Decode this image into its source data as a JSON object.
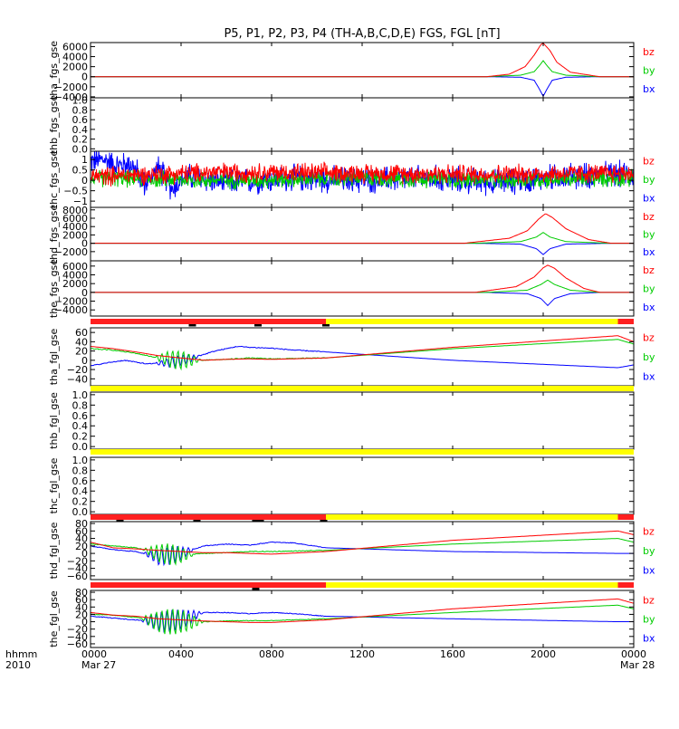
{
  "title": "P5, P1, P2, P3, P4 (TH-A,B,C,D,E) FGS, FGL [nT]",
  "colors": {
    "bx": "#0000ff",
    "by": "#00cc00",
    "bz": "#ff0000",
    "bar_red": "#ff2020",
    "bar_yellow": "#ffff00",
    "bar_black": "#000000"
  },
  "time_axis": {
    "label_line1": "hhmm",
    "label_line2": "2010",
    "range_hours": [
      0,
      24
    ],
    "ticks": [
      {
        "h": 0,
        "label": "0000",
        "date": "Mar 27"
      },
      {
        "h": 4,
        "label": "0400",
        "date": ""
      },
      {
        "h": 8,
        "label": "0800",
        "date": ""
      },
      {
        "h": 12,
        "label": "1200",
        "date": ""
      },
      {
        "h": 16,
        "label": "1600",
        "date": ""
      },
      {
        "h": 20,
        "label": "2000",
        "date": ""
      },
      {
        "h": 24,
        "label": "0000",
        "date": "Mar 28"
      }
    ]
  },
  "chart_data": [
    {
      "type": "line",
      "ylabel": "tha_fgs_gse",
      "ylim": [
        -4200,
        6800
      ],
      "yticks": [
        6000,
        4000,
        2000,
        0,
        -2000,
        -4000
      ],
      "ytick_labels": [
        "6000",
        "4000",
        "2000",
        "0",
        "−2000",
        "−4000"
      ],
      "legend": [
        "bz",
        "by",
        "bx"
      ],
      "series": [
        {
          "name": "bx",
          "x": [
            0,
            17.5,
            19.0,
            19.6,
            19.85,
            20.0,
            20.15,
            20.4,
            21.0,
            22.5,
            24.0
          ],
          "values": [
            0,
            0,
            -100,
            -700,
            -2600,
            -3900,
            -2600,
            -700,
            -100,
            0,
            0
          ]
        },
        {
          "name": "by",
          "x": [
            0,
            17.5,
            19.0,
            19.6,
            19.85,
            20.0,
            20.15,
            20.4,
            21.0,
            22.5,
            24.0
          ],
          "values": [
            0,
            0,
            300,
            1000,
            2300,
            3200,
            2300,
            1000,
            300,
            0,
            0
          ]
        },
        {
          "name": "bz",
          "x": [
            0,
            17.5,
            18.5,
            19.2,
            19.6,
            19.9,
            20.0,
            20.3,
            20.6,
            21.2,
            22.5,
            24.0
          ],
          "values": [
            0,
            0,
            500,
            2000,
            4300,
            6400,
            6700,
            5200,
            2900,
            900,
            0,
            0
          ]
        }
      ]
    },
    {
      "type": "line",
      "ylabel": "thb_fgs_gse",
      "ylim": [
        -0.05,
        1.05
      ],
      "yticks": [
        1.0,
        0.8,
        0.6,
        0.4,
        0.2,
        0.0
      ],
      "ytick_labels": [
        "1.0",
        "0.8",
        "0.6",
        "0.4",
        "0.2",
        "0.0"
      ],
      "legend": [],
      "series": []
    },
    {
      "type": "line",
      "ylabel": "thc_fgs_gse",
      "ylim": [
        -1.3,
        1.4
      ],
      "yticks": [
        1,
        0.5,
        0,
        -0.5,
        -1
      ],
      "ytick_labels": [
        "1",
        "0.5",
        "0",
        "−0.5",
        "−1"
      ],
      "legend": [
        "bz",
        "by",
        "bx"
      ],
      "noise": true,
      "series": [
        {
          "name": "bx",
          "base": 0.15,
          "amp": 0.55,
          "x": [
            0,
            0.6,
            1.2,
            1.8,
            2.4,
            3.0,
            3.6,
            4.2,
            6,
            9,
            12,
            15,
            18,
            21,
            24
          ],
          "values": [
            0.9,
            1.0,
            0.7,
            0.8,
            -0.2,
            0.6,
            -0.4,
            0.2,
            -0.1,
            0.1,
            0.0,
            0.1,
            -0.1,
            0.2,
            0.3
          ]
        },
        {
          "name": "by",
          "base": 0.0,
          "amp": 0.35,
          "x": [
            0,
            6,
            12,
            18,
            24
          ],
          "values": [
            0.1,
            0.0,
            0.1,
            0.0,
            0.1
          ]
        },
        {
          "name": "bz",
          "base": 0.35,
          "amp": 0.4,
          "x": [
            0,
            6,
            12,
            18,
            24
          ],
          "values": [
            0.2,
            0.4,
            0.35,
            0.3,
            0.35
          ]
        }
      ]
    },
    {
      "type": "line",
      "ylabel": "thd_fgs_gse",
      "ylim": [
        -4200,
        8600
      ],
      "yticks": [
        8000,
        6000,
        4000,
        2000,
        0,
        -2000
      ],
      "ytick_labels": [
        "8000",
        "6000",
        "4000",
        "2000",
        "0",
        "−2000"
      ],
      "legend": [
        "bz",
        "by",
        "bx"
      ],
      "series": [
        {
          "name": "bx",
          "x": [
            0,
            17.0,
            19.0,
            19.7,
            20.0,
            20.3,
            21.0,
            23.0,
            24.0
          ],
          "values": [
            0,
            0,
            -200,
            -1300,
            -2700,
            -1300,
            -200,
            0,
            0
          ]
        },
        {
          "name": "by",
          "x": [
            0,
            17.0,
            19.0,
            19.7,
            20.0,
            20.3,
            21.0,
            23.0,
            24.0
          ],
          "values": [
            0,
            0,
            400,
            1500,
            2600,
            1500,
            400,
            0,
            0
          ]
        },
        {
          "name": "bz",
          "x": [
            0,
            16.5,
            18.5,
            19.3,
            19.8,
            20.1,
            20.4,
            21.0,
            22.0,
            23.0,
            24.0
          ],
          "values": [
            0,
            0,
            1200,
            3000,
            5800,
            7100,
            6200,
            3500,
            900,
            0,
            0
          ]
        }
      ]
    },
    {
      "type": "line",
      "ylabel": "the_fgs_gse",
      "ylim": [
        -5400,
        7200
      ],
      "yticks": [
        6000,
        4000,
        2000,
        0,
        -2000,
        -4000
      ],
      "ytick_labels": [
        "6000",
        "4000",
        "2000",
        "0",
        "−2000",
        "−4000"
      ],
      "legend": [
        "bz",
        "by",
        "bx"
      ],
      "series": [
        {
          "name": "bx",
          "x": [
            0,
            17.5,
            19.3,
            19.9,
            20.2,
            20.5,
            21.2,
            22.5,
            24.0
          ],
          "values": [
            0,
            0,
            -300,
            -1400,
            -3000,
            -1400,
            -300,
            0,
            0
          ]
        },
        {
          "name": "by",
          "x": [
            0,
            17.5,
            19.3,
            19.9,
            20.2,
            20.5,
            21.2,
            22.5,
            24.0
          ],
          "values": [
            0,
            0,
            500,
            1800,
            2800,
            1800,
            500,
            0,
            0
          ]
        },
        {
          "name": "bz",
          "x": [
            0,
            17.0,
            18.8,
            19.6,
            20.0,
            20.2,
            20.5,
            21.0,
            21.8,
            22.5,
            24.0
          ],
          "values": [
            0,
            0,
            1300,
            3500,
            5600,
            6200,
            5500,
            3300,
            900,
            0,
            0
          ]
        }
      ]
    },
    {
      "type": "line",
      "ylabel": "tha_fgl_gse",
      "ylim": [
        -55,
        70
      ],
      "yticks": [
        60,
        40,
        20,
        0,
        -20,
        -40
      ],
      "ytick_labels": [
        "60",
        "40",
        "20",
        "0",
        "−20",
        "−40"
      ],
      "legend": [
        "bz",
        "by",
        "bx"
      ],
      "bar": {
        "segments": [
          {
            "from": 0,
            "to": 10.4,
            "color": "red"
          },
          {
            "from": 10.4,
            "to": 23.3,
            "color": "yellow"
          },
          {
            "from": 23.3,
            "to": 24,
            "color": "red"
          }
        ],
        "marks": [
          4.5,
          7.4,
          10.4
        ]
      },
      "osc": {
        "from": 2.8,
        "to": 4.9,
        "amp_by": 20,
        "amp_bx": 12
      },
      "series": [
        {
          "name": "bx",
          "x": [
            0,
            0.8,
            1.5,
            2.5,
            3.5,
            4.5,
            5.5,
            6.5,
            7.0,
            8.0,
            9.0,
            10.4,
            16,
            23.3,
            24
          ],
          "values": [
            -12,
            -5,
            0,
            -8,
            -5,
            5,
            20,
            30,
            28,
            26,
            22,
            18,
            0,
            -16,
            -10
          ]
        },
        {
          "name": "by",
          "x": [
            0,
            1.0,
            2.0,
            3.0,
            4.0,
            5.0,
            6.0,
            7.0,
            8.0,
            10.4,
            16,
            23.3,
            24
          ],
          "values": [
            25,
            22,
            15,
            5,
            0,
            0,
            2,
            5,
            3,
            5,
            25,
            45,
            35
          ]
        },
        {
          "name": "bz",
          "x": [
            0,
            1.0,
            2.0,
            3.0,
            4.0,
            5.0,
            6.0,
            7.0,
            8.0,
            10.4,
            16,
            23.3,
            24
          ],
          "values": [
            30,
            25,
            18,
            10,
            5,
            0,
            2,
            3,
            2,
            5,
            28,
            53,
            40
          ]
        }
      ]
    },
    {
      "type": "line",
      "ylabel": "thb_fgl_gse",
      "ylim": [
        -0.05,
        1.05
      ],
      "yticks": [
        1.0,
        0.8,
        0.6,
        0.4,
        0.2,
        0.0
      ],
      "ytick_labels": [
        "1.0",
        "0.8",
        "0.6",
        "0.4",
        "0.2",
        "0.0"
      ],
      "legend": [],
      "bar": {
        "segments": [
          {
            "from": 0,
            "to": 24,
            "color": "yellow"
          }
        ],
        "marks": []
      },
      "series": []
    },
    {
      "type": "line",
      "ylabel": "thc_fgl_gse",
      "ylim": [
        -0.05,
        1.05
      ],
      "yticks": [
        1.0,
        0.8,
        0.6,
        0.4,
        0.2,
        0.0
      ],
      "ytick_labels": [
        "1.0",
        "0.8",
        "0.6",
        "0.4",
        "0.2",
        "0.0"
      ],
      "legend": [],
      "bar": {
        "segments": [
          {
            "from": 0,
            "to": 24,
            "color": "yellow"
          }
        ],
        "marks": []
      },
      "series": []
    },
    {
      "type": "line",
      "ylabel": "thd_fgl_gse",
      "ylim": [
        -70,
        85
      ],
      "yticks": [
        80,
        60,
        40,
        20,
        0,
        -20,
        -40,
        -60
      ],
      "ytick_labels": [
        "80",
        "60",
        "40",
        "20",
        "0",
        "−20",
        "−40",
        "−60"
      ],
      "legend": [
        "bz",
        "by",
        "bx"
      ],
      "bar": {
        "segments": [
          {
            "from": 0,
            "to": 10.4,
            "color": "red"
          },
          {
            "from": 10.4,
            "to": 23.3,
            "color": "yellow"
          },
          {
            "from": 23.3,
            "to": 24,
            "color": "red"
          }
        ],
        "marks": [
          1.3,
          4.7,
          7.3,
          7.5,
          10.3
        ]
      },
      "osc": {
        "from": 2.3,
        "to": 4.6,
        "amp_by": 28,
        "amp_bx": 25
      },
      "series": [
        {
          "name": "bx",
          "x": [
            0,
            1.0,
            2.0,
            3.0,
            4.0,
            5.0,
            6.0,
            7.0,
            8.0,
            9.0,
            10.4,
            16,
            23.3,
            24
          ],
          "values": [
            20,
            10,
            5,
            -10,
            0,
            20,
            25,
            22,
            30,
            28,
            15,
            5,
            0,
            0
          ]
        },
        {
          "name": "by",
          "x": [
            0,
            1.0,
            2.0,
            3.0,
            4.0,
            5.0,
            6.0,
            7.0,
            8.0,
            10.4,
            16,
            23.3,
            24
          ],
          "values": [
            25,
            20,
            15,
            0,
            -5,
            0,
            2,
            5,
            5,
            8,
            25,
            40,
            30
          ]
        },
        {
          "name": "bz",
          "x": [
            0,
            1.0,
            2.0,
            3.0,
            4.0,
            5.0,
            6.0,
            7.0,
            8.0,
            10.4,
            16,
            23.3,
            24
          ],
          "values": [
            30,
            15,
            12,
            8,
            5,
            2,
            2,
            0,
            -2,
            5,
            35,
            60,
            50
          ]
        }
      ]
    },
    {
      "type": "line",
      "ylabel": "the_fgl_gse",
      "ylim": [
        -70,
        85
      ],
      "yticks": [
        80,
        60,
        40,
        20,
        0,
        -20,
        -40,
        -60
      ],
      "ytick_labels": [
        "80",
        "60",
        "40",
        "20",
        "0",
        "−20",
        "−40",
        "−60"
      ],
      "legend": [
        "bz",
        "by",
        "bx"
      ],
      "bar": {
        "segments": [
          {
            "from": 0,
            "to": 10.4,
            "color": "red"
          },
          {
            "from": 10.4,
            "to": 23.3,
            "color": "yellow"
          },
          {
            "from": 23.3,
            "to": 24,
            "color": "red"
          }
        ],
        "marks": [
          7.3
        ]
      },
      "osc": {
        "from": 2.2,
        "to": 5.0,
        "amp_by": 35,
        "amp_bx": 30
      },
      "series": [
        {
          "name": "bx",
          "x": [
            0,
            1.0,
            2.0,
            3.0,
            4.0,
            5.0,
            6.0,
            7.0,
            8.0,
            9.0,
            10.4,
            16,
            23.3,
            24
          ],
          "values": [
            15,
            10,
            5,
            0,
            5,
            25,
            25,
            22,
            25,
            22,
            15,
            8,
            0,
            0
          ]
        },
        {
          "name": "by",
          "x": [
            0,
            1.0,
            2.0,
            3.0,
            4.0,
            5.0,
            6.0,
            7.0,
            8.0,
            10.4,
            16,
            23.3,
            24
          ],
          "values": [
            20,
            18,
            12,
            0,
            0,
            0,
            2,
            3,
            3,
            8,
            25,
            45,
            35
          ]
        },
        {
          "name": "bz",
          "x": [
            0,
            1.0,
            2.0,
            3.0,
            4.0,
            5.0,
            6.0,
            7.0,
            8.0,
            10.4,
            16,
            23.3,
            24
          ],
          "values": [
            25,
            18,
            15,
            8,
            5,
            2,
            0,
            -2,
            -2,
            5,
            35,
            62,
            50
          ]
        }
      ]
    }
  ]
}
